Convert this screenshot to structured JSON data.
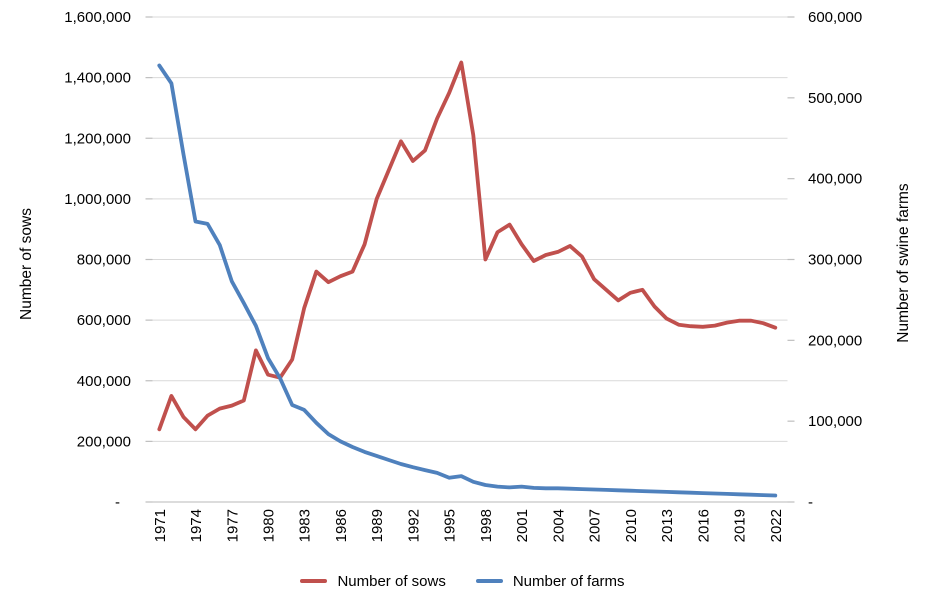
{
  "chart_data": {
    "type": "line",
    "title": "",
    "x": [
      1971,
      1972,
      1973,
      1974,
      1975,
      1976,
      1977,
      1978,
      1979,
      1980,
      1981,
      1982,
      1983,
      1984,
      1985,
      1986,
      1987,
      1988,
      1989,
      1990,
      1991,
      1992,
      1993,
      1994,
      1995,
      1996,
      1997,
      1998,
      1999,
      2000,
      2001,
      2002,
      2003,
      2004,
      2005,
      2006,
      2007,
      2008,
      2009,
      2010,
      2011,
      2012,
      2013,
      2014,
      2015,
      2016,
      2017,
      2018,
      2019,
      2020,
      2021,
      2022
    ],
    "series": [
      {
        "name": "Number of sows",
        "axis": "left",
        "color": "#C0504D",
        "values": [
          240000,
          350000,
          280000,
          240000,
          285000,
          308000,
          318000,
          335000,
          500000,
          420000,
          410000,
          470000,
          640000,
          760000,
          725000,
          745000,
          760000,
          850000,
          1000000,
          1095000,
          1190000,
          1125000,
          1160000,
          1265000,
          1350000,
          1450000,
          1210000,
          800000,
          890000,
          915000,
          850000,
          795000,
          815000,
          825000,
          845000,
          810000,
          735000,
          700000,
          665000,
          690000,
          700000,
          645000,
          605000,
          585000,
          580000,
          578000,
          582000,
          592000,
          598000,
          598000,
          590000,
          575000
        ]
      },
      {
        "name": "Number of farms",
        "axis": "right",
        "color": "#4F81BD",
        "values": [
          540000,
          518000,
          430000,
          347000,
          344000,
          318000,
          273000,
          246000,
          218000,
          178000,
          153000,
          120000,
          114000,
          98000,
          84000,
          75000,
          68000,
          62000,
          57000,
          52000,
          47000,
          43000,
          39500,
          36000,
          30000,
          32000,
          25000,
          21000,
          19000,
          18000,
          19000,
          17500,
          17000,
          17000,
          16500,
          16000,
          15500,
          15000,
          14500,
          14000,
          13500,
          13000,
          12500,
          12000,
          11500,
          11000,
          10500,
          10000,
          9500,
          9000,
          8500,
          8000
        ]
      }
    ],
    "left_axis": {
      "label": "Number of sows",
      "min": 0,
      "max": 1600000,
      "tick_step": 200000,
      "tick_labels": [
        "-",
        "200,000",
        "400,000",
        "600,000",
        "800,000",
        "1,000,000",
        "1,200,000",
        "1,400,000",
        "1,600,000"
      ]
    },
    "right_axis": {
      "label": "Number of swine farms",
      "min": 0,
      "max": 600000,
      "tick_step": 100000,
      "tick_labels": [
        "-",
        "100,000",
        "200,000",
        "300,000",
        "400,000",
        "500,000",
        "600,000"
      ]
    },
    "x_tick_labels": [
      "1971",
      "1974",
      "1977",
      "1980",
      "1983",
      "1986",
      "1989",
      "1992",
      "1995",
      "1998",
      "2001",
      "2004",
      "2007",
      "2010",
      "2013",
      "2016",
      "2019",
      "2022"
    ],
    "grid": true,
    "legend_position": "bottom"
  },
  "legend": {
    "items": [
      {
        "label": "Number of sows",
        "color": "#C0504D"
      },
      {
        "label": "Number of farms",
        "color": "#4F81BD"
      }
    ]
  },
  "colors": {
    "background": "#FFFFFF",
    "gridline": "#D9D9D9",
    "axis_line": "#C8C6C6",
    "tick_mark": "#BFBFBF",
    "text": "#000000"
  }
}
